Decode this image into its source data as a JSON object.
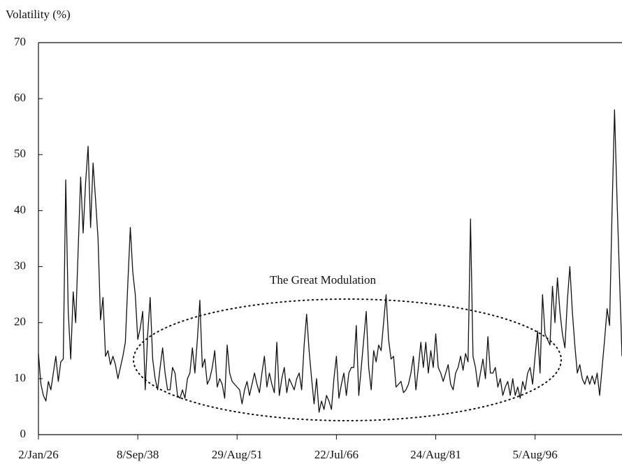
{
  "chart_data": {
    "type": "line",
    "y_label": "Volatility (%)",
    "annotation": "The Great Modulation",
    "categories": [
      "2/Jan/26",
      null,
      null,
      null,
      null,
      null,
      null,
      null,
      null,
      null,
      null,
      null,
      null,
      null,
      null,
      null,
      null,
      null,
      null,
      null,
      null,
      null,
      null,
      null,
      null,
      null,
      null,
      null,
      null,
      null,
      null,
      null,
      null,
      null,
      null,
      null,
      null,
      null,
      null,
      null,
      "8/Sep/38",
      null,
      null,
      null,
      null,
      null,
      null,
      null,
      null,
      null,
      null,
      null,
      null,
      null,
      null,
      null,
      null,
      null,
      null,
      null,
      null,
      null,
      null,
      null,
      null,
      null,
      null,
      null,
      null,
      null,
      null,
      null,
      null,
      null,
      null,
      null,
      null,
      null,
      null,
      null,
      "29/Aug/51",
      null,
      null,
      null,
      null,
      null,
      null,
      null,
      null,
      null,
      null,
      null,
      null,
      null,
      null,
      null,
      null,
      null,
      null,
      null,
      null,
      null,
      null,
      null,
      null,
      null,
      null,
      null,
      null,
      null,
      null,
      null,
      null,
      null,
      null,
      null,
      null,
      null,
      null,
      null,
      "22/Jul/66",
      null,
      null,
      null,
      null,
      null,
      null,
      null,
      null,
      null,
      null,
      null,
      null,
      null,
      null,
      null,
      null,
      null,
      null,
      null,
      null,
      null,
      null,
      null,
      null,
      null,
      null,
      null,
      null,
      null,
      null,
      null,
      null,
      null,
      null,
      null,
      null,
      null,
      null,
      null,
      "24/Aug/81",
      null,
      null,
      null,
      null,
      null,
      null,
      null,
      null,
      null,
      null,
      null,
      null,
      null,
      null,
      null,
      null,
      null,
      null,
      null,
      null,
      null,
      null,
      null,
      null,
      null,
      null,
      null,
      null,
      null,
      null,
      null,
      null,
      null,
      null,
      null,
      null,
      null,
      null,
      null,
      "5/Aug/96",
      null,
      null,
      null,
      null,
      null,
      null,
      null,
      null,
      null,
      null,
      null,
      null,
      null,
      null,
      null,
      null,
      null,
      null,
      null,
      null,
      null,
      null,
      null,
      null,
      null,
      null,
      null,
      null,
      null,
      null,
      null,
      null,
      null,
      null,
      null
    ],
    "series": [
      {
        "name": "Volatility",
        "color": "#111111",
        "values": [
          14.5,
          9,
          7,
          6,
          9.5,
          8,
          11,
          14,
          9.5,
          13,
          13.5,
          45.5,
          22,
          13.5,
          25.5,
          20,
          33,
          46,
          36,
          45,
          51.5,
          37,
          48.5,
          42,
          35,
          20.5,
          24.5,
          14,
          15,
          12.5,
          14,
          12.5,
          10,
          12,
          14,
          16.5,
          27,
          37,
          29,
          25,
          17,
          19,
          22,
          8,
          18,
          24.5,
          13.5,
          10,
          8,
          12,
          15.5,
          11,
          8,
          8,
          12,
          11,
          7,
          6.5,
          8,
          6.5,
          10,
          11,
          15.5,
          11,
          17,
          24,
          12,
          13.5,
          9,
          10,
          12,
          15,
          8.5,
          10,
          9,
          6.5,
          16,
          11,
          9.5,
          9,
          8.5,
          8,
          5.5,
          8,
          9.5,
          7,
          9,
          11,
          9,
          7.5,
          11,
          14,
          8.5,
          11,
          9,
          7.5,
          16.5,
          7,
          10,
          12,
          7.5,
          10,
          9,
          8,
          10,
          11,
          8,
          16,
          21.5,
          15,
          10,
          5.5,
          10,
          4,
          6,
          4.5,
          7,
          6,
          4.5,
          10,
          14,
          6.5,
          9,
          11,
          7,
          11,
          12,
          12,
          19.5,
          7,
          12,
          17,
          22,
          12,
          8,
          15,
          13,
          16,
          15,
          20,
          25,
          17,
          13.5,
          14,
          8.5,
          9,
          9.5,
          7.5,
          8,
          9,
          11,
          14,
          8,
          12,
          16.5,
          12,
          16.5,
          11,
          15,
          12,
          18,
          12,
          11,
          9.5,
          11,
          12.5,
          9,
          8,
          11,
          12,
          14,
          11.5,
          14.5,
          13,
          38.5,
          14,
          12,
          8.5,
          11,
          13.5,
          10,
          17.5,
          11,
          11,
          12,
          8.5,
          10,
          7,
          8.5,
          9.5,
          7,
          10,
          7,
          8.5,
          6.5,
          9.5,
          8,
          11,
          12,
          9,
          14,
          18.5,
          11,
          25,
          18,
          17,
          16,
          26.5,
          20,
          28,
          22,
          18,
          15.5,
          24,
          30,
          22,
          16,
          11,
          12.5,
          10,
          9,
          10.5,
          9,
          10.5,
          9,
          11,
          7,
          12,
          17,
          22.5,
          19.5,
          40,
          58,
          42,
          28,
          14
        ]
      }
    ],
    "ylim": [
      0,
      70
    ],
    "yticks": [
      0,
      10,
      20,
      30,
      40,
      50,
      60,
      70
    ],
    "grid": false
  }
}
